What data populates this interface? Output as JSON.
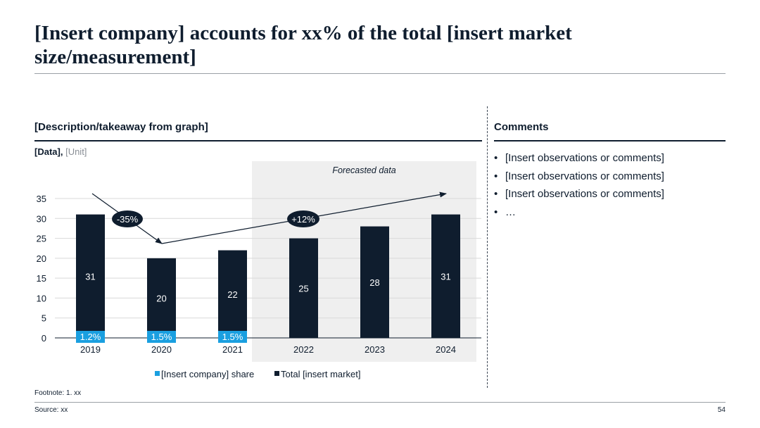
{
  "title": "[Insert company] accounts for xx% of the total [insert market size/measurement]",
  "left_heading": "[Description/takeaway from graph]",
  "right_heading": "Comments",
  "data_label": "[Data],",
  "unit_label": "[Unit]",
  "comments": [
    "[Insert observations or comments]",
    "[Insert observations or comments]",
    "[Insert observations or comments]",
    "…"
  ],
  "footnote": "Footnote: 1. xx",
  "source": "Source: xx",
  "page_number": "54",
  "chart_data": {
    "type": "bar",
    "categories": [
      "2019",
      "2020",
      "2021",
      "2022",
      "2023",
      "2024"
    ],
    "series": [
      {
        "name": "Total [insert market]",
        "values": [
          31,
          20,
          22,
          25,
          28,
          31
        ]
      },
      {
        "name": "[Insert company] share",
        "values": [
          "1.2%",
          "1.5%",
          "1.5%",
          null,
          null,
          null
        ]
      }
    ],
    "ylim": [
      0,
      35
    ],
    "yticks": [
      0,
      5,
      10,
      15,
      20,
      25,
      30,
      35
    ],
    "forecast_label": "Forecasted data",
    "forecast_categories": [
      "2022",
      "2023",
      "2024"
    ],
    "annotations": [
      {
        "label": "-35%",
        "from": "2019",
        "to": "2020"
      },
      {
        "label": "+12%",
        "from": "2020",
        "to": "2024"
      }
    ],
    "grid": true,
    "legend_position": "bottom",
    "colors": {
      "total": "#0f1d2e",
      "share": "#1a9fe0",
      "forecast_bg": "#efefef",
      "grid": "#d9d9d9"
    }
  }
}
